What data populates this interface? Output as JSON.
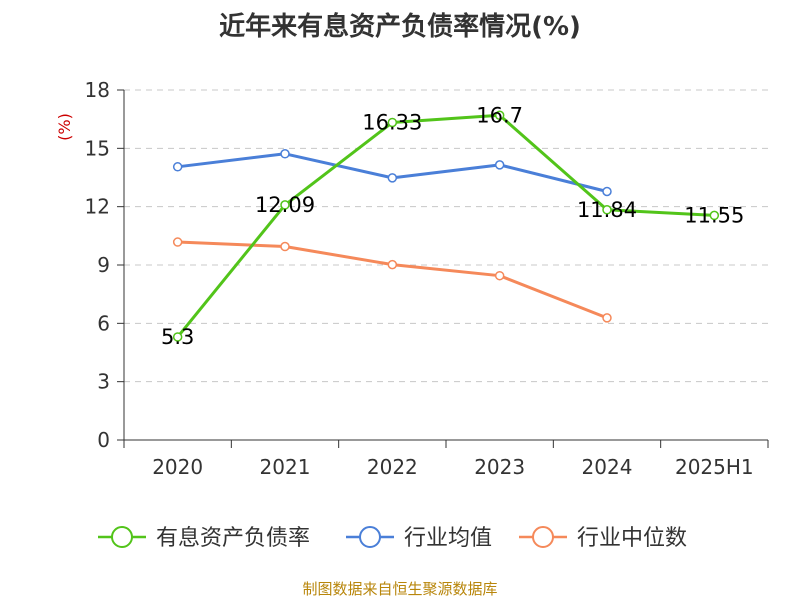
{
  "title": "近年来有息资产负债率情况(%)",
  "source": "制图数据来自恒生聚源数据库",
  "chart_data": {
    "type": "line",
    "title": "近年来有息资产负债率情况(%)",
    "ylabel": "(%)",
    "categories": [
      "2020",
      "2021",
      "2022",
      "2023",
      "2024",
      "2025H1"
    ],
    "ylim": [
      0,
      18
    ],
    "yticks": [
      0,
      3,
      6,
      9,
      12,
      15,
      18
    ],
    "grid": true,
    "legend_position": "bottom",
    "series": [
      {
        "name": "有息资产负债率",
        "color": "#52c41a",
        "values": [
          5.3,
          12.09,
          16.33,
          16.7,
          11.84,
          11.55
        ],
        "labels": [
          "5.3",
          "12.09",
          "16.33",
          "16.7",
          "11.84",
          "11.55"
        ]
      },
      {
        "name": "行业均值",
        "color": "#4a7fd8",
        "values": [
          14.05,
          14.72,
          13.48,
          14.15,
          12.78,
          null
        ]
      },
      {
        "name": "行业中位数",
        "color": "#f5895a",
        "values": [
          10.18,
          9.95,
          9.02,
          8.45,
          6.28,
          null
        ]
      }
    ]
  }
}
